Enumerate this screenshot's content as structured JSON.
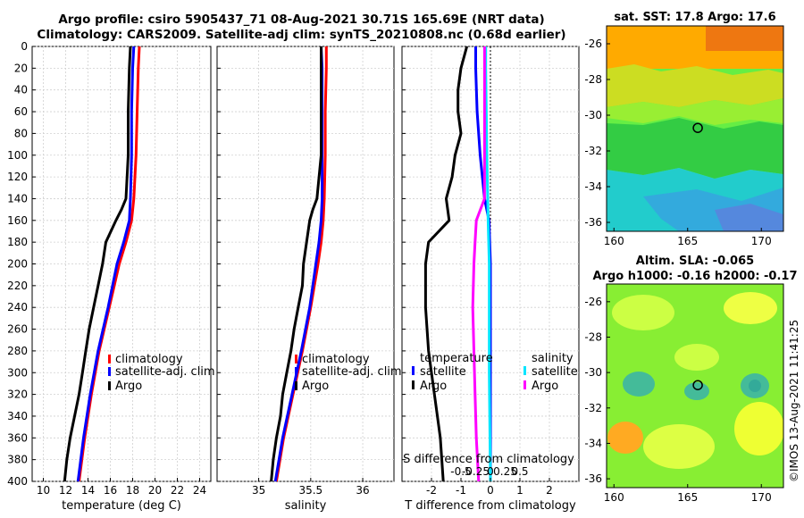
{
  "titles": {
    "line1": "Argo profile: csiro 5905437_71 08-Aug-2021 30.71S 165.69E (NRT data)",
    "line2": "Climatology: CARS2009. Satellite-adj clim: synTS_20210808.nc (0.68d earlier)"
  },
  "chart_data": [
    {
      "type": "line",
      "id": "temperature",
      "xlabel": "temperature (deg C)",
      "ylabel": "",
      "xlim": [
        9,
        25
      ],
      "ylim": [
        400,
        0
      ],
      "xticks": [
        10,
        12,
        14,
        16,
        18,
        20,
        22,
        24
      ],
      "yticks": [
        0,
        20,
        40,
        60,
        80,
        100,
        120,
        140,
        160,
        180,
        200,
        220,
        240,
        260,
        280,
        300,
        320,
        340,
        360,
        380,
        400
      ],
      "grid": true,
      "legend": {
        "entries": [
          "climatology",
          "satellite-adj. clim",
          "Argo"
        ],
        "colors": [
          "#ff0000",
          "#0000ff",
          "#000000"
        ],
        "placement": "lower-right"
      },
      "series": [
        {
          "name": "climatology",
          "color": "#ff0000",
          "depth": [
            0,
            20,
            60,
            100,
            140,
            160,
            180,
            200,
            240,
            280,
            320,
            360,
            400
          ],
          "values": [
            18.6,
            18.5,
            18.4,
            18.3,
            18.1,
            17.9,
            17.4,
            16.8,
            15.9,
            15.0,
            14.3,
            13.7,
            13.2
          ]
        },
        {
          "name": "satellite-adj. clim",
          "color": "#0000ff",
          "depth": [
            0,
            20,
            60,
            100,
            140,
            160,
            180,
            200,
            240,
            280,
            320,
            360,
            400
          ],
          "values": [
            18.1,
            18.0,
            17.9,
            17.9,
            17.8,
            17.7,
            17.2,
            16.6,
            15.8,
            14.9,
            14.2,
            13.6,
            13.1
          ]
        },
        {
          "name": "Argo",
          "color": "#000000",
          "depth": [
            0,
            20,
            60,
            100,
            140,
            150,
            160,
            180,
            200,
            220,
            240,
            260,
            280,
            300,
            320,
            340,
            360,
            380,
            400
          ],
          "values": [
            17.8,
            17.7,
            17.6,
            17.6,
            17.4,
            17.0,
            16.5,
            15.6,
            15.3,
            14.9,
            14.5,
            14.1,
            13.8,
            13.5,
            13.2,
            12.8,
            12.4,
            12.1,
            11.9
          ]
        }
      ]
    },
    {
      "type": "line",
      "id": "salinity",
      "xlabel": "salinity",
      "xlim": [
        34.6,
        36.3
      ],
      "ylim": [
        400,
        0
      ],
      "xticks": [
        35,
        35.5,
        36
      ],
      "grid": true,
      "legend": {
        "entries": [
          "climatology",
          "satellite-adj. clim",
          "Argo"
        ],
        "colors": [
          "#ff0000",
          "#0000ff",
          "#000000"
        ],
        "placement": "lower-right"
      },
      "series": [
        {
          "name": "climatology",
          "color": "#ff0000",
          "depth": [
            0,
            20,
            60,
            100,
            140,
            160,
            180,
            200,
            240,
            280,
            320,
            360,
            400
          ],
          "values": [
            35.65,
            35.65,
            35.64,
            35.64,
            35.63,
            35.62,
            35.6,
            35.57,
            35.5,
            35.42,
            35.33,
            35.24,
            35.17
          ]
        },
        {
          "name": "satellite-adj. clim",
          "color": "#0000ff",
          "depth": [
            0,
            20,
            60,
            100,
            140,
            160,
            180,
            200,
            240,
            280,
            320,
            360,
            400
          ],
          "values": [
            35.6,
            35.61,
            35.61,
            35.61,
            35.61,
            35.6,
            35.58,
            35.55,
            35.49,
            35.41,
            35.32,
            35.23,
            35.16
          ]
        },
        {
          "name": "Argo",
          "color": "#000000",
          "depth": [
            0,
            20,
            60,
            100,
            140,
            150,
            160,
            180,
            200,
            220,
            240,
            260,
            280,
            300,
            320,
            340,
            360,
            380,
            400
          ],
          "values": [
            35.6,
            35.6,
            35.6,
            35.6,
            35.56,
            35.52,
            35.49,
            35.46,
            35.43,
            35.42,
            35.38,
            35.34,
            35.31,
            35.27,
            35.23,
            35.21,
            35.17,
            35.14,
            35.12
          ]
        }
      ]
    },
    {
      "type": "line",
      "id": "difference",
      "xlabel": "T difference from climatology",
      "xlabel_top": "S difference from climatology",
      "xlim": [
        -3,
        3
      ],
      "ylim": [
        400,
        0
      ],
      "xticks": [
        -2,
        -1,
        0,
        1,
        2
      ],
      "xticks_s": [
        -0.5,
        -0.25,
        0,
        0.25,
        0.5
      ],
      "grid": true,
      "legend_t": {
        "title": "temperature",
        "entries": [
          "satellite",
          "Argo"
        ],
        "colors": [
          "#0000ff",
          "#000000"
        ]
      },
      "legend_s": {
        "title": "salinity",
        "entries": [
          "satellite",
          "Argo"
        ],
        "colors": [
          "#00e5ff",
          "#ff00ff"
        ]
      },
      "series": [
        {
          "name": "temperature satellite",
          "color": "#0000ff",
          "depth": [
            0,
            20,
            60,
            100,
            140,
            160,
            200,
            300,
            400
          ],
          "values": [
            -0.5,
            -0.5,
            -0.45,
            -0.35,
            -0.2,
            -0.05,
            0.0,
            0.0,
            0.0
          ]
        },
        {
          "name": "temperature Argo",
          "color": "#000000",
          "depth": [
            0,
            20,
            40,
            60,
            80,
            100,
            120,
            140,
            160,
            180,
            200,
            240,
            280,
            320,
            360,
            400
          ],
          "values": [
            -0.8,
            -1.0,
            -1.1,
            -1.1,
            -1.0,
            -1.2,
            -1.3,
            -1.5,
            -1.4,
            -2.1,
            -2.2,
            -2.2,
            -2.1,
            -1.9,
            -1.7,
            -1.6
          ]
        },
        {
          "name": "salinity satellite",
          "color": "#00e5ff",
          "depth": [
            0,
            20,
            100,
            160,
            200,
            300,
            400
          ],
          "values": [
            -0.04,
            -0.04,
            -0.03,
            -0.02,
            -0.01,
            -0.01,
            0.0
          ]
        },
        {
          "name": "salinity Argo",
          "color": "#ff00ff",
          "depth": [
            0,
            20,
            60,
            100,
            140,
            160,
            180,
            200,
            240,
            280,
            320,
            360,
            400
          ],
          "values": [
            -0.05,
            -0.05,
            -0.05,
            -0.05,
            -0.05,
            -0.12,
            -0.13,
            -0.14,
            -0.15,
            -0.14,
            -0.13,
            -0.12,
            -0.1
          ]
        }
      ]
    },
    {
      "type": "heatmap",
      "id": "sst-map",
      "title": "sat. SST: 17.8 Argo: 17.6",
      "xlim": [
        159.5,
        171.5
      ],
      "ylim": [
        -36.5,
        -25
      ],
      "xticks": [
        160,
        165,
        170
      ],
      "yticks": [
        -26,
        -28,
        -30,
        -32,
        -34,
        -36
      ],
      "marker": {
        "lon": 165.69,
        "lat": -30.71
      }
    },
    {
      "type": "heatmap",
      "id": "sla-map",
      "title": "Altim. SLA: -0.065",
      "subtitle": "Argo h1000: -0.16 h2000: -0.17",
      "xlim": [
        159.5,
        171.5
      ],
      "ylim": [
        -36.5,
        -25
      ],
      "xticks": [
        160,
        165,
        170
      ],
      "yticks": [
        -26,
        -28,
        -30,
        -32,
        -34,
        -36
      ],
      "marker": {
        "lon": 165.69,
        "lat": -30.71
      }
    }
  ],
  "colors": {
    "climatology": "#ff0000",
    "satellite": "#0000ff",
    "argo": "#000000",
    "salinity_satellite": "#00e5ff",
    "salinity_argo": "#ff00ff"
  },
  "watermark": "©IMOS 13-Aug-2021 11:41:25"
}
